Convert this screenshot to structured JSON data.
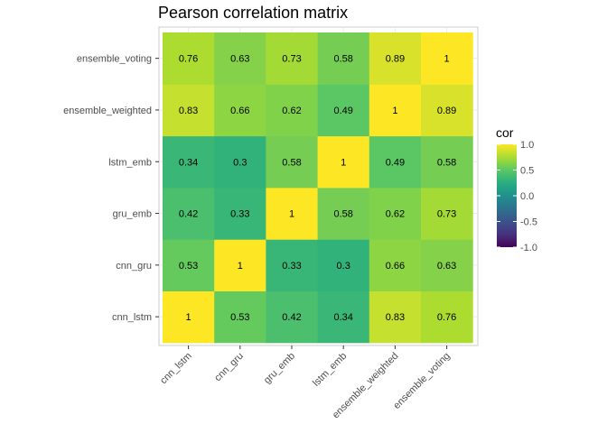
{
  "chart_data": {
    "type": "heatmap",
    "title": "Pearson correlation matrix",
    "xlabel": "",
    "ylabel": "",
    "x_categories": [
      "cnn_lstm",
      "cnn_gru",
      "gru_emb",
      "lstm_emb",
      "ensemble_weighted",
      "ensemble_voting"
    ],
    "y_categories": [
      "cnn_lstm",
      "cnn_gru",
      "gru_emb",
      "lstm_emb",
      "ensemble_weighted",
      "ensemble_voting"
    ],
    "values": [
      [
        1,
        0.53,
        0.42,
        0.34,
        0.83,
        0.76
      ],
      [
        0.53,
        1,
        0.33,
        0.3,
        0.66,
        0.63
      ],
      [
        0.42,
        0.33,
        1,
        0.58,
        0.62,
        0.73
      ],
      [
        0.34,
        0.3,
        0.58,
        1,
        0.49,
        0.58
      ],
      [
        0.83,
        0.66,
        0.62,
        0.49,
        1,
        0.89
      ],
      [
        0.76,
        0.63,
        0.73,
        0.58,
        0.89,
        1
      ]
    ],
    "colorbar": {
      "title": "cor",
      "range": [
        -1,
        1
      ],
      "ticks": [
        "1.0",
        "0.5",
        "0.0",
        "-0.5",
        "-1.0"
      ],
      "colormap": "viridis"
    },
    "legend_position": "right",
    "grid": true
  }
}
